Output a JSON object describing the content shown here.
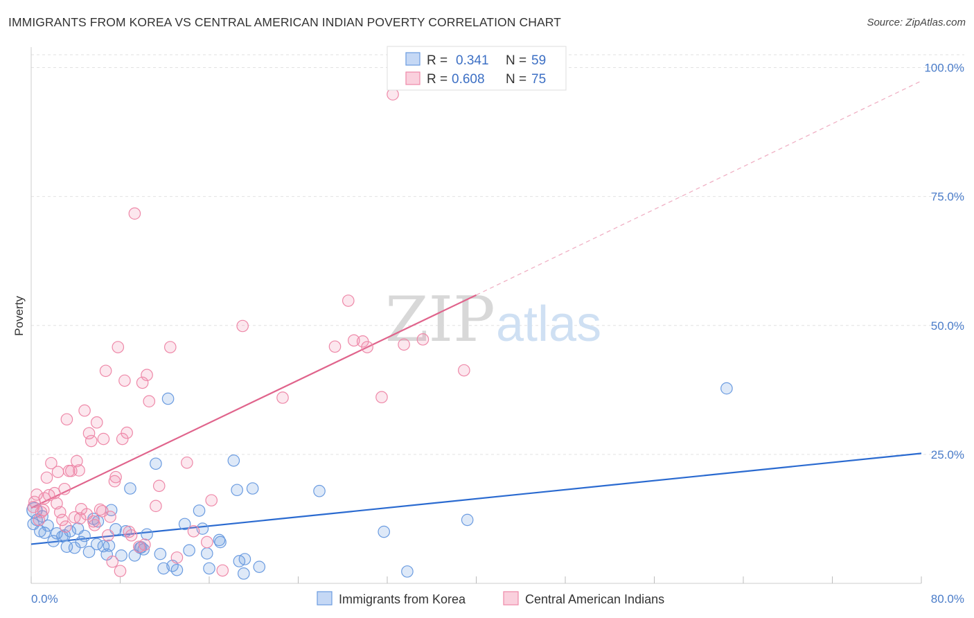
{
  "title": "IMMIGRANTS FROM KOREA VS CENTRAL AMERICAN INDIAN POVERTY CORRELATION CHART",
  "source": "Source: ZipAtlas.com",
  "watermark": {
    "part1": "ZIP",
    "part2": "atlas"
  },
  "legend": {
    "r_label": "R =",
    "n_label": "N =",
    "entries": [
      {
        "r": "0.341",
        "n": "59"
      },
      {
        "r": "0.608",
        "n": "75"
      }
    ]
  },
  "colors": {
    "blue": "#6a9be0",
    "blue_line": "#2a6ad0",
    "pink": "#ee88a8",
    "pink_line": "#e0648c",
    "tick": "#4a7cc9"
  },
  "chart_data": {
    "type": "scatter",
    "title": "IMMIGRANTS FROM KOREA VS CENTRAL AMERICAN INDIAN POVERTY CORRELATION CHART",
    "xlabel": "",
    "ylabel": "Poverty",
    "xlim": [
      0,
      80
    ],
    "ylim": [
      0,
      100
    ],
    "x_tick_labels": [
      "0.0%",
      "80.0%"
    ],
    "y_ticks": [
      25,
      50,
      75,
      100
    ],
    "y_tick_labels": [
      "25.0%",
      "50.0%",
      "75.0%",
      "100.0%"
    ],
    "grid": true,
    "legend_position": "top-center",
    "series": [
      {
        "name": "Immigrants from Korea",
        "color": "#6a9be0",
        "trend": {
          "x": [
            0,
            80
          ],
          "y": [
            7.6,
            25.2
          ],
          "dashed_extension": false
        },
        "points": [
          [
            0.5,
            12.3
          ],
          [
            0.8,
            10.1
          ],
          [
            1.2,
            9.8
          ],
          [
            1.5,
            11.2
          ],
          [
            2.0,
            8.2
          ],
          [
            2.3,
            9.7
          ],
          [
            2.8,
            9.1
          ],
          [
            3.2,
            7.1
          ],
          [
            3.5,
            10.1
          ],
          [
            3.9,
            6.9
          ],
          [
            4.2,
            10.6
          ],
          [
            4.8,
            9.2
          ],
          [
            5.2,
            6.1
          ],
          [
            5.6,
            12.5
          ],
          [
            5.9,
            7.6
          ],
          [
            6.5,
            7.2
          ],
          [
            6.8,
            5.6
          ],
          [
            7.2,
            14.2
          ],
          [
            7.6,
            10.5
          ],
          [
            8.1,
            5.4
          ],
          [
            8.5,
            10.1
          ],
          [
            8.9,
            18.4
          ],
          [
            9.3,
            5.4
          ],
          [
            9.8,
            6.9
          ],
          [
            10.1,
            6.6
          ],
          [
            10.4,
            9.5
          ],
          [
            11.2,
            23.2
          ],
          [
            11.6,
            5.7
          ],
          [
            11.9,
            2.9
          ],
          [
            12.3,
            35.8
          ],
          [
            12.7,
            3.4
          ],
          [
            13.1,
            2.6
          ],
          [
            13.8,
            11.5
          ],
          [
            14.2,
            6.4
          ],
          [
            15.1,
            14.1
          ],
          [
            15.4,
            10.6
          ],
          [
            15.8,
            5.8
          ],
          [
            16.0,
            2.9
          ],
          [
            16.9,
            8.4
          ],
          [
            17.0,
            8.0
          ],
          [
            18.2,
            23.8
          ],
          [
            18.5,
            18.1
          ],
          [
            18.7,
            4.3
          ],
          [
            19.2,
            4.7
          ],
          [
            19.1,
            1.9
          ],
          [
            19.9,
            18.4
          ],
          [
            20.5,
            3.2
          ],
          [
            25.9,
            17.9
          ],
          [
            31.7,
            10.0
          ],
          [
            33.8,
            2.3
          ],
          [
            39.2,
            12.3
          ],
          [
            62.5,
            37.8
          ],
          [
            7.0,
            7.3
          ],
          [
            3.0,
            9.3
          ],
          [
            0.2,
            11.5
          ],
          [
            1.0,
            13.0
          ],
          [
            4.5,
            8.0
          ],
          [
            6.0,
            12.0
          ],
          [
            9.9,
            7.0
          ]
        ],
        "highlight_point": {
          "x": 0.3,
          "y": 14.2
        }
      },
      {
        "name": "Central American Indians",
        "color": "#ee88a8",
        "trend": {
          "x": [
            0,
            40
          ],
          "y": [
            14.6,
            55.9
          ],
          "dashed_extension": true,
          "extension_to": [
            80,
            97.4
          ]
        },
        "points": [
          [
            0.3,
            15.8
          ],
          [
            0.5,
            17.2
          ],
          [
            0.9,
            13.8
          ],
          [
            1.2,
            16.5
          ],
          [
            1.4,
            20.5
          ],
          [
            1.6,
            17.1
          ],
          [
            1.8,
            23.3
          ],
          [
            2.1,
            17.5
          ],
          [
            2.3,
            15.5
          ],
          [
            2.6,
            13.8
          ],
          [
            2.8,
            12.3
          ],
          [
            3.0,
            18.3
          ],
          [
            3.2,
            31.8
          ],
          [
            3.4,
            21.8
          ],
          [
            3.6,
            21.8
          ],
          [
            3.9,
            12.8
          ],
          [
            4.1,
            23.7
          ],
          [
            4.3,
            21.9
          ],
          [
            4.5,
            14.4
          ],
          [
            4.8,
            33.5
          ],
          [
            5.0,
            13.4
          ],
          [
            5.2,
            29.1
          ],
          [
            5.4,
            27.6
          ],
          [
            5.6,
            12.0
          ],
          [
            5.9,
            31.2
          ],
          [
            6.2,
            14.3
          ],
          [
            6.5,
            28.0
          ],
          [
            6.7,
            41.2
          ],
          [
            6.9,
            9.3
          ],
          [
            7.1,
            12.9
          ],
          [
            7.3,
            4.2
          ],
          [
            7.6,
            20.6
          ],
          [
            7.8,
            45.8
          ],
          [
            8.0,
            2.4
          ],
          [
            8.2,
            28.0
          ],
          [
            8.4,
            39.3
          ],
          [
            8.6,
            29.2
          ],
          [
            9.0,
            9.3
          ],
          [
            9.3,
            71.7
          ],
          [
            9.7,
            7.1
          ],
          [
            10.0,
            38.9
          ],
          [
            10.4,
            40.4
          ],
          [
            10.6,
            35.3
          ],
          [
            11.2,
            15.0
          ],
          [
            11.5,
            18.9
          ],
          [
            12.5,
            45.8
          ],
          [
            13.1,
            5.0
          ],
          [
            14.0,
            23.4
          ],
          [
            14.6,
            10.1
          ],
          [
            15.8,
            8.0
          ],
          [
            16.2,
            16.1
          ],
          [
            17.2,
            2.5
          ],
          [
            19.0,
            49.9
          ],
          [
            22.6,
            36.0
          ],
          [
            27.3,
            45.9
          ],
          [
            28.5,
            54.8
          ],
          [
            29.0,
            47.1
          ],
          [
            29.8,
            46.9
          ],
          [
            30.2,
            45.8
          ],
          [
            31.5,
            36.1
          ],
          [
            32.5,
            94.8
          ],
          [
            33.5,
            46.3
          ],
          [
            35.2,
            47.3
          ],
          [
            38.9,
            41.3
          ],
          [
            0.7,
            12.3
          ],
          [
            1.1,
            14.2
          ],
          [
            2.4,
            21.6
          ],
          [
            3.1,
            11.0
          ],
          [
            4.4,
            12.6
          ],
          [
            5.7,
            11.3
          ],
          [
            7.5,
            19.8
          ],
          [
            8.8,
            10.0
          ],
          [
            10.2,
            7.5
          ],
          [
            6.4,
            14.0
          ],
          [
            0.2,
            14.8
          ]
        ]
      }
    ]
  }
}
